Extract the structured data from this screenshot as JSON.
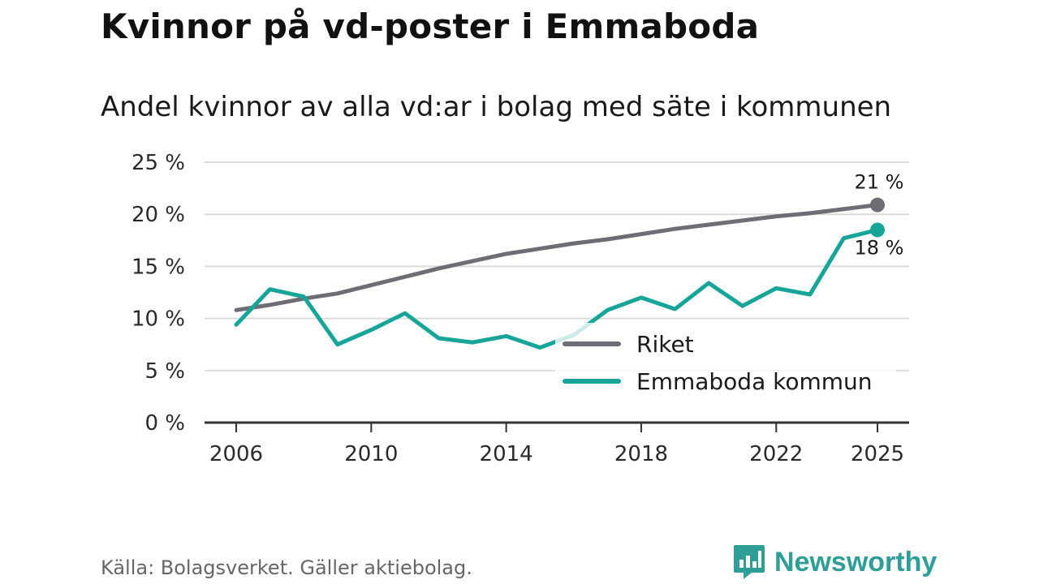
{
  "title": "Kvinnor på vd-poster i Emmaboda",
  "subtitle": "Andel kvinnor av alla vd:ar i bolag med säte i kommunen",
  "source": "Källa: Bolagsverket. Gäller aktiebolag.",
  "brand": {
    "name": "Newsworthy",
    "icon": "newsworthy-logo-icon"
  },
  "chart_data": {
    "type": "line",
    "title": "Kvinnor på vd-poster i Emmaboda",
    "subtitle": "Andel kvinnor av alla vd:ar i bolag med säte i kommunen",
    "xlabel": "",
    "ylabel": "",
    "x": [
      2006,
      2007,
      2008,
      2009,
      2010,
      2011,
      2012,
      2013,
      2014,
      2015,
      2016,
      2017,
      2018,
      2019,
      2020,
      2021,
      2022,
      2023,
      2024,
      2025
    ],
    "xticks": [
      2006,
      2010,
      2014,
      2018,
      2022,
      2025
    ],
    "xtick_labels": [
      "2006",
      "2010",
      "2014",
      "2018",
      "2022",
      "2025"
    ],
    "ylim": [
      0,
      25
    ],
    "yticks": [
      0,
      5,
      10,
      15,
      20,
      25
    ],
    "ytick_labels": [
      "0 %",
      "5 %",
      "10 %",
      "15 %",
      "20 %",
      "25 %"
    ],
    "grid": true,
    "legend_position": "bottom-right",
    "series": [
      {
        "name": "Riket",
        "color": "#6f6d73",
        "values": [
          10.8,
          11.3,
          11.9,
          12.4,
          13.2,
          14.0,
          14.8,
          15.5,
          16.2,
          16.7,
          17.2,
          17.6,
          18.1,
          18.6,
          19.0,
          19.4,
          19.8,
          20.1,
          20.5,
          20.9
        ],
        "end_label": "21 %"
      },
      {
        "name": "Emmaboda kommun",
        "color": "#17a59a",
        "values": [
          9.4,
          12.8,
          12.1,
          7.5,
          8.9,
          10.5,
          8.1,
          7.7,
          8.3,
          7.2,
          8.4,
          10.8,
          12.0,
          10.9,
          13.4,
          11.2,
          12.9,
          12.3,
          17.7,
          18.5
        ],
        "end_label": "18 %"
      }
    ]
  }
}
